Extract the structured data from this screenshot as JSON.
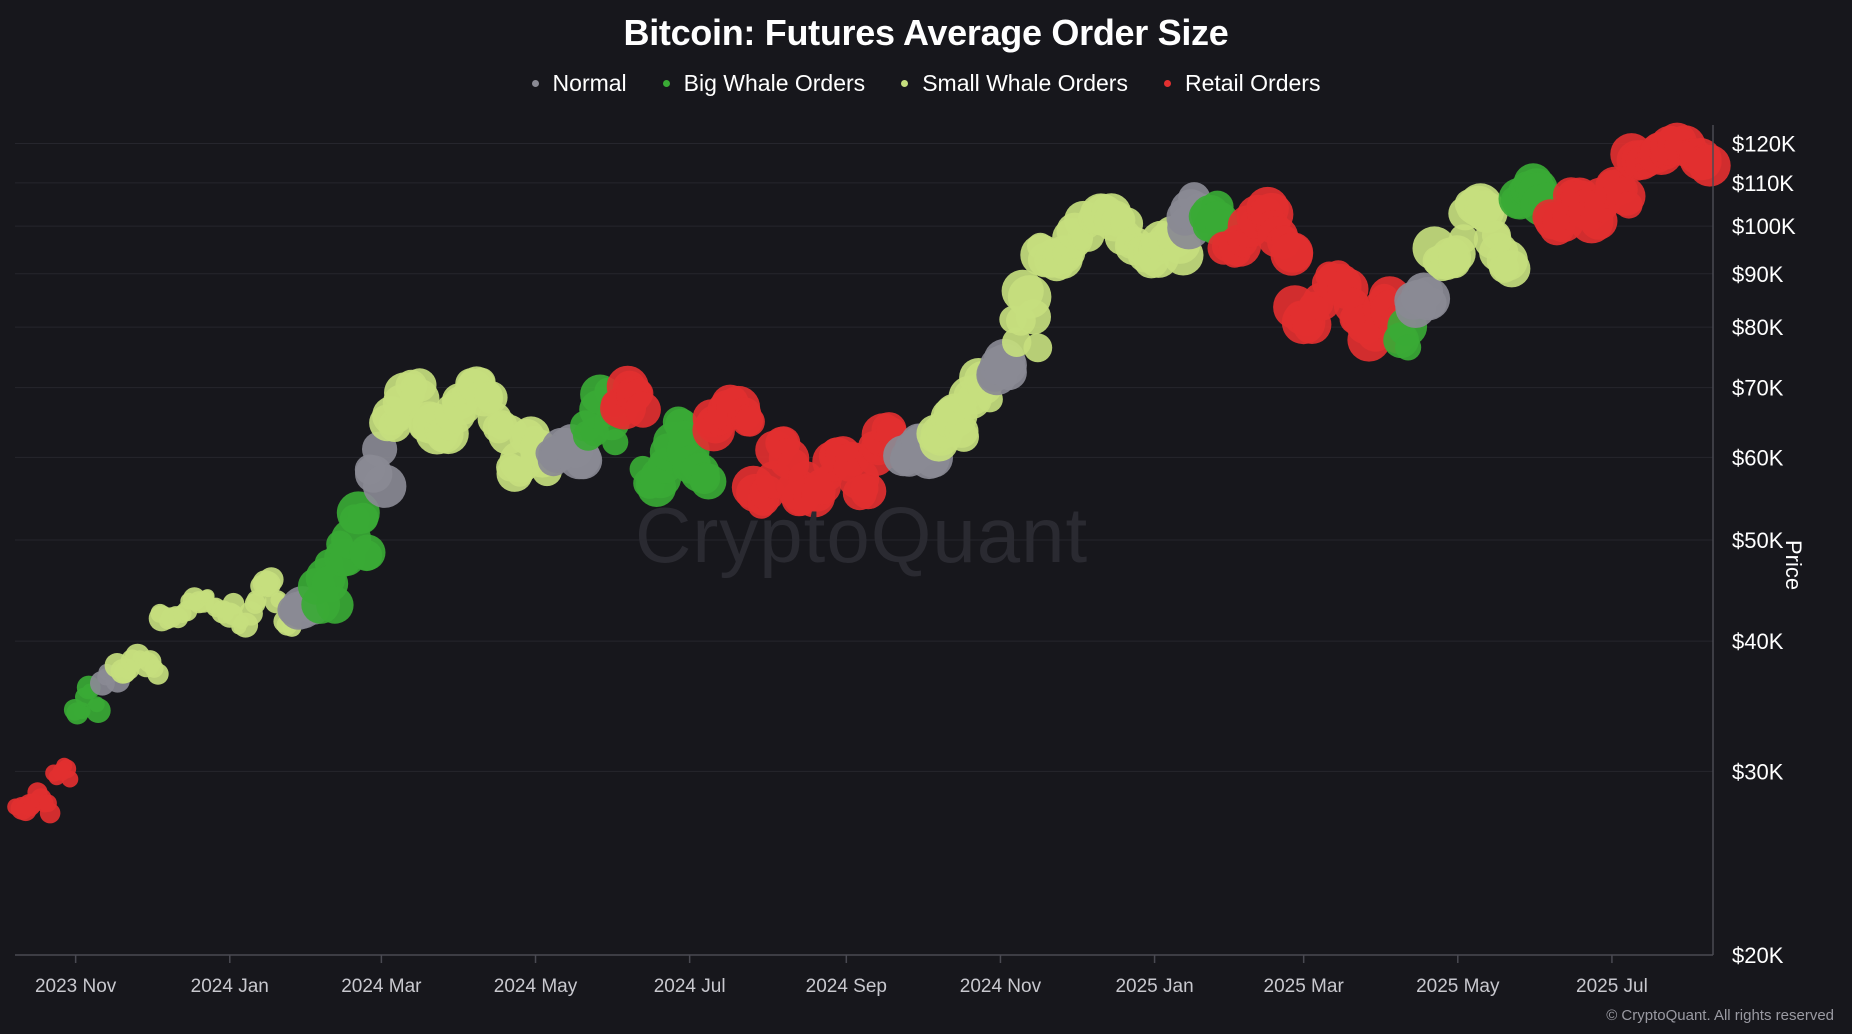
{
  "chart_data": {
    "type": "scatter",
    "title": "Bitcoin: Futures Average Order Size",
    "ylabel": "Price",
    "y_scale": "log",
    "ylim": [
      20000,
      125000
    ],
    "xlim": [
      "2023-10-08",
      "2025-08-10"
    ],
    "y_ticks": [
      {
        "value": 120000,
        "label": "$120K"
      },
      {
        "value": 110000,
        "label": "$110K"
      },
      {
        "value": 100000,
        "label": "$100K"
      },
      {
        "value": 90000,
        "label": "$90K"
      },
      {
        "value": 80000,
        "label": "$80K"
      },
      {
        "value": 70000,
        "label": "$70K"
      },
      {
        "value": 60000,
        "label": "$60K"
      },
      {
        "value": 50000,
        "label": "$50K"
      },
      {
        "value": 40000,
        "label": "$40K"
      },
      {
        "value": 30000,
        "label": "$30K"
      },
      {
        "value": 20000,
        "label": "$20K"
      }
    ],
    "x_ticks": [
      {
        "value": "2023-11-01",
        "label": "2023 Nov"
      },
      {
        "value": "2024-01-01",
        "label": "2024 Jan"
      },
      {
        "value": "2024-03-01",
        "label": "2024 Mar"
      },
      {
        "value": "2024-05-01",
        "label": "2024 May"
      },
      {
        "value": "2024-07-01",
        "label": "2024 Jul"
      },
      {
        "value": "2024-09-01",
        "label": "2024 Sep"
      },
      {
        "value": "2024-11-01",
        "label": "2024 Nov"
      },
      {
        "value": "2025-01-01",
        "label": "2025 Jan"
      },
      {
        "value": "2025-03-01",
        "label": "2025 Mar"
      },
      {
        "value": "2025-05-01",
        "label": "2025 May"
      },
      {
        "value": "2025-07-01",
        "label": "2025 Jul"
      }
    ],
    "grid": true,
    "legend_position": "top-center",
    "series": [
      {
        "name": "Normal",
        "color": "#8a8a94",
        "key": "normal"
      },
      {
        "name": "Big Whale Orders",
        "color": "#3aaa35",
        "key": "big"
      },
      {
        "name": "Small Whale Orders",
        "color": "#c6de7e",
        "key": "small"
      },
      {
        "name": "Retail Orders",
        "color": "#e23030",
        "key": "retail"
      }
    ],
    "segments": [
      [
        "2023-10-09",
        "2023-10-22",
        "retail",
        27500,
        28500
      ],
      [
        "2023-10-23",
        "2023-10-30",
        "retail",
        29500,
        30500
      ],
      [
        "2023-10-31",
        "2023-11-10",
        "big",
        34000,
        36000
      ],
      [
        "2023-11-11",
        "2023-11-17",
        "normal",
        36500,
        37800
      ],
      [
        "2023-11-18",
        "2023-12-03",
        "small",
        37000,
        39000
      ],
      [
        "2023-12-04",
        "2024-01-02",
        "small",
        42000,
        44000
      ],
      [
        "2024-01-03",
        "2024-01-25",
        "small",
        41000,
        46000
      ],
      [
        "2024-01-26",
        "2024-02-03",
        "normal",
        42500,
        43500
      ],
      [
        "2024-02-04",
        "2024-02-12",
        "big",
        43000,
        48000
      ],
      [
        "2024-02-13",
        "2024-02-25",
        "big",
        48000,
        53000
      ],
      [
        "2024-02-26",
        "2024-03-02",
        "normal",
        56000,
        63000
      ],
      [
        "2024-03-03",
        "2024-03-20",
        "small",
        64000,
        72000
      ],
      [
        "2024-03-21",
        "2024-04-20",
        "small",
        63000,
        71000
      ],
      [
        "2024-04-21",
        "2024-05-05",
        "small",
        58000,
        64000
      ],
      [
        "2024-05-06",
        "2024-05-20",
        "normal",
        60000,
        62000
      ],
      [
        "2024-05-21",
        "2024-06-01",
        "big",
        62000,
        70000
      ],
      [
        "2024-06-02",
        "2024-06-12",
        "retail",
        67000,
        70500
      ],
      [
        "2024-06-13",
        "2024-07-08",
        "big",
        56000,
        65000
      ],
      [
        "2024-07-09",
        "2024-07-25",
        "retail",
        64000,
        68000
      ],
      [
        "2024-07-26",
        "2024-08-15",
        "retail",
        54000,
        62000
      ],
      [
        "2024-08-16",
        "2024-09-10",
        "retail",
        55000,
        61000
      ],
      [
        "2024-09-11",
        "2024-09-22",
        "retail",
        60000,
        64000
      ],
      [
        "2024-09-23",
        "2024-10-05",
        "normal",
        60000,
        62000
      ],
      [
        "2024-10-06",
        "2024-10-18",
        "small",
        62000,
        67000
      ],
      [
        "2024-10-19",
        "2024-10-28",
        "small",
        68000,
        72000
      ],
      [
        "2024-10-29",
        "2024-11-05",
        "normal",
        72000,
        75000
      ],
      [
        "2024-11-06",
        "2024-11-15",
        "small",
        76000,
        88000
      ],
      [
        "2024-11-16",
        "2024-12-31",
        "small",
        92000,
        104000
      ],
      [
        "2025-01-01",
        "2025-01-12",
        "small",
        93000,
        100000
      ],
      [
        "2025-01-13",
        "2025-01-20",
        "normal",
        100000,
        106000
      ],
      [
        "2025-01-21",
        "2025-01-28",
        "big",
        100000,
        104000
      ],
      [
        "2025-01-29",
        "2025-02-25",
        "retail",
        94000,
        104000
      ],
      [
        "2025-02-26",
        "2025-03-25",
        "retail",
        80000,
        90000
      ],
      [
        "2025-03-26",
        "2025-04-08",
        "retail",
        78000,
        86000
      ],
      [
        "2025-04-09",
        "2025-04-12",
        "big",
        76000,
        80000
      ],
      [
        "2025-04-13",
        "2025-04-20",
        "normal",
        84000,
        86000
      ],
      [
        "2025-04-21",
        "2025-05-22",
        "small",
        90000,
        106000
      ],
      [
        "2025-05-23",
        "2025-06-05",
        "big",
        105000,
        110000
      ],
      [
        "2025-06-06",
        "2025-06-25",
        "retail",
        100000,
        108000
      ],
      [
        "2025-06-26",
        "2025-07-08",
        "retail",
        105000,
        110000
      ],
      [
        "2025-07-09",
        "2025-08-08",
        "retail",
        115000,
        120000
      ]
    ]
  },
  "watermark": "CryptoQuant",
  "copyright": "© CryptoQuant. All rights reserved"
}
